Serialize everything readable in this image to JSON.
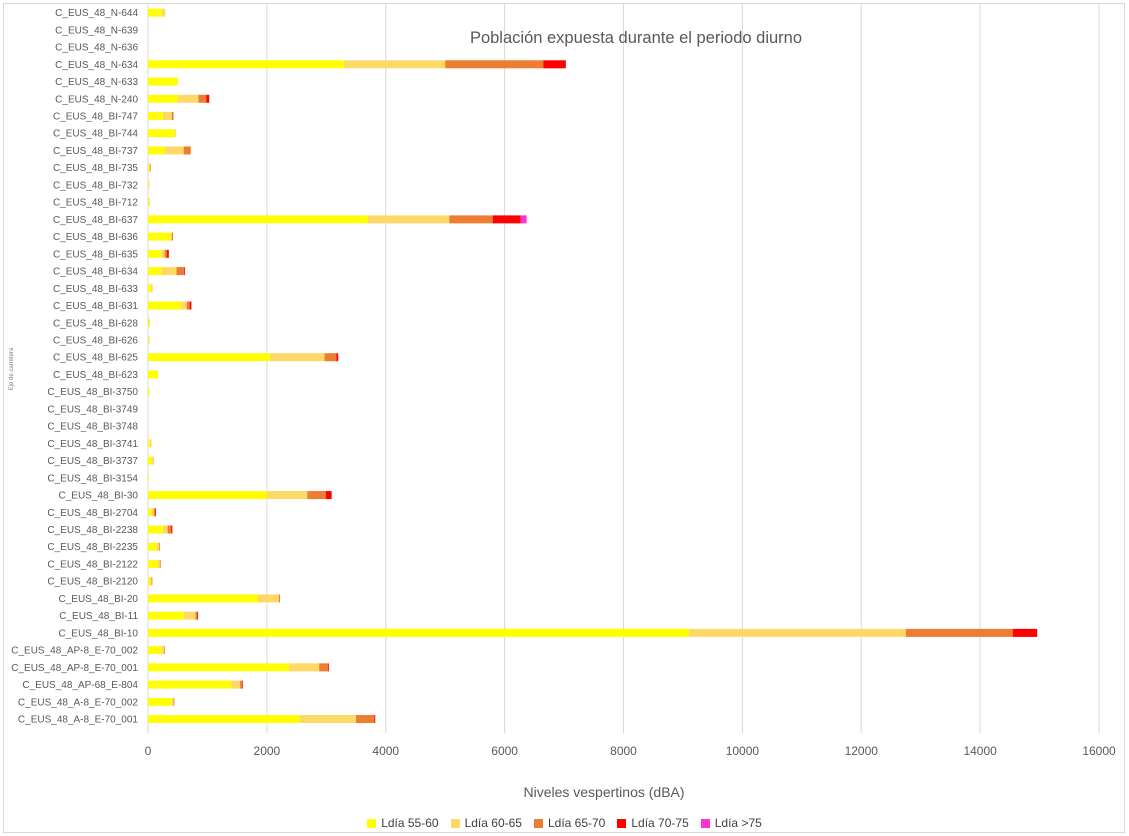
{
  "chart_data": {
    "type": "bar",
    "orientation": "horizontal",
    "stacked": true,
    "title": "Población expuesta durante el periodo diurno",
    "xlabel": "Niveles vespertinos (dBA)",
    "ylabel": "Eje de carretera",
    "xlim": [
      0,
      16000
    ],
    "xticks": [
      0,
      2000,
      4000,
      6000,
      8000,
      10000,
      12000,
      14000,
      16000
    ],
    "grid": "vertical",
    "legend_position": "bottom",
    "categories": [
      "C_EUS_48_N-644",
      "C_EUS_48_N-639",
      "C_EUS_48_N-636",
      "C_EUS_48_N-634",
      "C_EUS_48_N-633",
      "C_EUS_48_N-240",
      "C_EUS_48_BI-747",
      "C_EUS_48_BI-744",
      "C_EUS_48_BI-737",
      "C_EUS_48_BI-735",
      "C_EUS_48_BI-732",
      "C_EUS_48_BI-712",
      "C_EUS_48_BI-637",
      "C_EUS_48_BI-636",
      "C_EUS_48_BI-635",
      "C_EUS_48_BI-634",
      "C_EUS_48_BI-633",
      "C_EUS_48_BI-631",
      "C_EUS_48_BI-628",
      "C_EUS_48_BI-626",
      "C_EUS_48_BI-625",
      "C_EUS_48_BI-623",
      "C_EUS_48_BI-3750",
      "C_EUS_48_BI-3749",
      "C_EUS_48_BI-3748",
      "C_EUS_48_BI-3741",
      "C_EUS_48_BI-3737",
      "C_EUS_48_BI-3154",
      "C_EUS_48_BI-30",
      "C_EUS_48_BI-2704",
      "C_EUS_48_BI-2238",
      "C_EUS_48_BI-2235",
      "C_EUS_48_BI-2122",
      "C_EUS_48_BI-2120",
      "C_EUS_48_BI-20",
      "C_EUS_48_BI-11",
      "C_EUS_48_BI-10",
      "C_EUS_48_AP-8_E-70_002",
      "C_EUS_48_AP-8_E-70_001",
      "C_EUS_48_AP-68_E-804",
      "C_EUS_48_A-8_E-70_002",
      "C_EUS_48_A-8_E-70_001"
    ],
    "series": [
      {
        "name": "Ldía 55-60",
        "color": "#ffff00",
        "values": [
          230,
          0,
          0,
          3300,
          500,
          500,
          250,
          450,
          280,
          20,
          10,
          20,
          3700,
          380,
          220,
          230,
          50,
          550,
          20,
          10,
          2050,
          170,
          20,
          0,
          0,
          30,
          60,
          10,
          2000,
          60,
          250,
          150,
          160,
          40,
          1850,
          600,
          9100,
          220,
          2380,
          1400,
          400,
          2550
        ]
      },
      {
        "name": "Ldía 60-65",
        "color": "#ffd966",
        "values": [
          60,
          0,
          0,
          1700,
          0,
          350,
          150,
          20,
          320,
          10,
          10,
          10,
          1370,
          20,
          60,
          250,
          30,
          100,
          10,
          10,
          920,
          0,
          0,
          0,
          0,
          30,
          40,
          0,
          680,
          40,
          80,
          40,
          40,
          20,
          350,
          200,
          3650,
          50,
          500,
          150,
          30,
          950
        ]
      },
      {
        "name": "Ldía 65-70",
        "color": "#ed7d31",
        "values": [
          0,
          0,
          0,
          1650,
          0,
          130,
          30,
          0,
          120,
          10,
          0,
          0,
          730,
          20,
          40,
          130,
          0,
          50,
          0,
          0,
          200,
          0,
          0,
          0,
          0,
          0,
          0,
          0,
          310,
          20,
          60,
          10,
          10,
          10,
          20,
          30,
          1800,
          10,
          150,
          30,
          10,
          310
        ]
      },
      {
        "name": "Ldía 70-75",
        "color": "#ff0000",
        "values": [
          0,
          0,
          0,
          380,
          0,
          50,
          0,
          0,
          0,
          0,
          0,
          0,
          470,
          0,
          30,
          10,
          0,
          30,
          0,
          0,
          30,
          0,
          0,
          0,
          0,
          0,
          0,
          0,
          100,
          10,
          20,
          0,
          0,
          0,
          0,
          10,
          410,
          0,
          10,
          10,
          0,
          10
        ]
      },
      {
        "name": "Ldía >75",
        "color": "#ff33cc",
        "values": [
          0,
          0,
          0,
          0,
          0,
          0,
          0,
          0,
          0,
          0,
          0,
          0,
          100,
          0,
          0,
          0,
          0,
          0,
          0,
          0,
          0,
          0,
          0,
          0,
          0,
          0,
          0,
          0,
          0,
          0,
          0,
          0,
          0,
          0,
          0,
          0,
          0,
          0,
          0,
          0,
          0,
          0
        ]
      }
    ]
  }
}
